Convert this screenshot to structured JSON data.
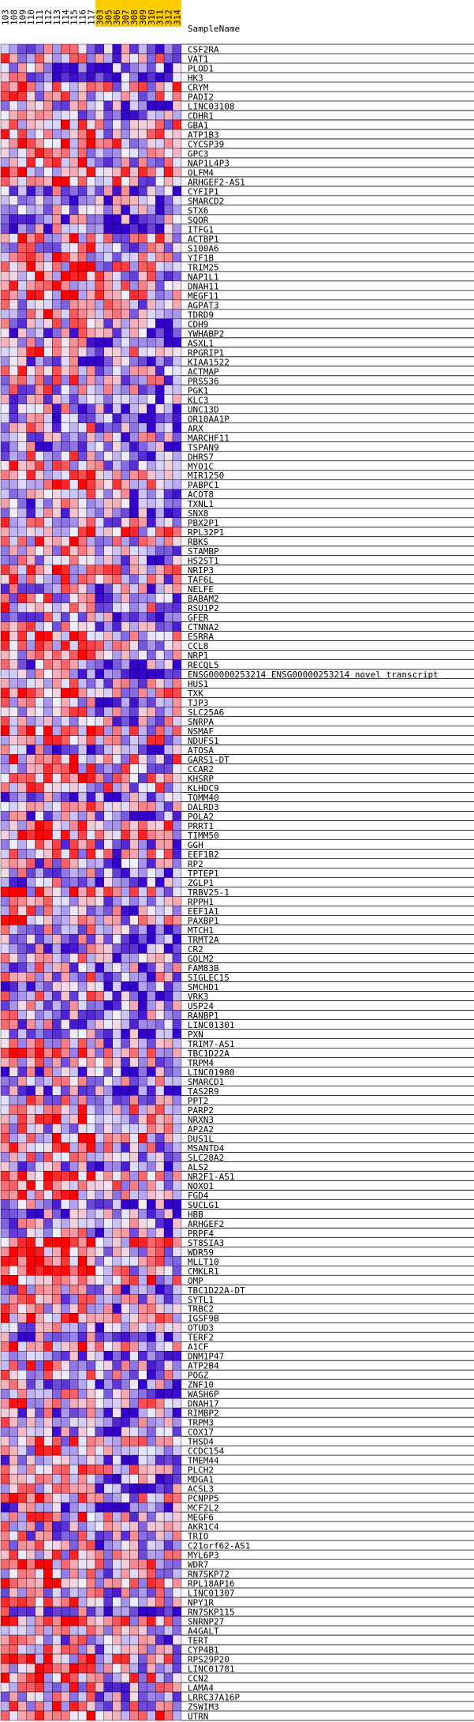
{
  "chart_data": {
    "type": "heatmap",
    "header_label": "SampleName",
    "columns": [
      "103",
      "108",
      "109",
      "110",
      "111",
      "112",
      "113",
      "114",
      "115",
      "116",
      "117",
      "303",
      "305",
      "306",
      "307",
      "308",
      "309",
      "310",
      "311",
      "312",
      "314"
    ],
    "highlight_columns": [
      "303",
      "305",
      "306",
      "307",
      "308",
      "309",
      "310",
      "311",
      "312",
      "314"
    ],
    "colors": {
      "low": "#3300cc",
      "mid": "#f0f0ff",
      "high": "#ff0000",
      "highlight_bg": "#ffcc00",
      "normal_bg": "#ffffff",
      "grid": "#000000"
    },
    "scale": [
      -3,
      3
    ],
    "rows": [
      "CSF2RA",
      "VAT1",
      "PLOD1",
      "HK3",
      "CRYM",
      "PADI2",
      "LINC03108",
      "CDHR1",
      "GBA1",
      "ATP1B3",
      "CYCSP39",
      "GPC3",
      "NAP1L4P3",
      "OLFM4",
      "ARHGEF2-AS1",
      "CYFIP1",
      "SMARCD2",
      "STX6",
      "SQOR",
      "ITFG1",
      "ACTBP1",
      "S100A6",
      "YIF1B",
      "TRIM25",
      "NAP1L1",
      "DNAH11",
      "MEGF11",
      "AGPAT3",
      "TDRD9",
      "CDH9",
      "YWHABP2",
      "ASXL1",
      "RPGRIP1",
      "KIAA1522",
      "ACTMAP",
      "PRSS36",
      "PGK1",
      "KLC3",
      "UNC13D",
      "OR10AA1P",
      "ARX",
      "MARCHF11",
      "TSPAN9",
      "DHRS7",
      "MYO1C",
      "MIR1250",
      "PABPC1",
      "ACOT8",
      "TXNL1",
      "SNX8",
      "PBX2P1",
      "RPL32P1",
      "RBKS",
      "STAMBP",
      "HS2ST1",
      "NRIP3",
      "TAF6L",
      "NELFE",
      "BABAM2",
      "RSU1P2",
      "GFER",
      "CTNNA2",
      "ESRRA",
      "CCL8",
      "NRP1",
      "RECQL5",
      "ENSG00000253214   ENSG00000253214 novel transcript",
      "HUS1",
      "TXK",
      "TJP3",
      "SLC25A6",
      "SNRPA",
      "NSMAF",
      "NDUFS1",
      "ATOSA",
      "GARS1-DT",
      "CCAR2",
      "KHSRP",
      "KLHDC9",
      "TOMM40",
      "DALRD3",
      "POLA2",
      "PRRT1",
      "TIMM50",
      "GGH",
      "EEF1B2",
      "RP2",
      "TPTEP1",
      "ZGLP1",
      "TRBV25-1",
      "RPPH1",
      "EEF1A1",
      "PAXBP1",
      "MTCH1",
      "TRMT2A",
      "CR2",
      "GOLM2",
      "FAM83B",
      "SIGLEC15",
      "SMCHD1",
      "VRK3",
      "USP24",
      "RANBP1",
      "LINC01301",
      "PXN",
      "TRIM7-AS1",
      "TBC1D22A",
      "TRPM4",
      "LINC01980",
      "SMARCD1",
      "TAS2R9",
      "PPT2",
      "PARP2",
      "NRXN3",
      "AP2A2",
      "DUS1L",
      "MSANTD4",
      "SLC28A2",
      "ALS2",
      "NR2F1-AS1",
      "NOXO1",
      "FGD4",
      "SUCLG1",
      "HBB",
      "ARHGEF2",
      "PRPF4",
      "ST8SIA3",
      "WDR59",
      "MLLT10",
      "CMKLR1",
      "OMP",
      "TBC1D22A-DT",
      "SYTL1",
      "TRBC2",
      "IGSF9B",
      "OTUD3",
      "TERF2",
      "A1CF",
      "DNM1P47",
      "ATP2B4",
      "POGZ",
      "ZNF10",
      "WASH6P",
      "DNAH17",
      "RIMBP2",
      "TRPM3",
      "COX17",
      "THSD4",
      "CCDC154",
      "TMEM44",
      "PLCH2",
      "MDGA1",
      "ACSL3",
      "PCNPP5",
      "MCF2L2",
      "MEGF6",
      "AKR1C4",
      "TRIO",
      "C21orf62-AS1",
      "MYL6P3",
      "WDR7",
      "RN7SKP72",
      "RPL18AP16",
      "LINC01307",
      "NPY1R",
      "RN7SKP115",
      "SNRNP27",
      "A4GALT",
      "TERT",
      "CYP4B1",
      "RPS29P20",
      "LINC01781",
      "CCN2",
      "LAMA4",
      "LRRC37A16P",
      "ZSWIM3",
      "UTRN"
    ],
    "value_seed": 20240517
  }
}
